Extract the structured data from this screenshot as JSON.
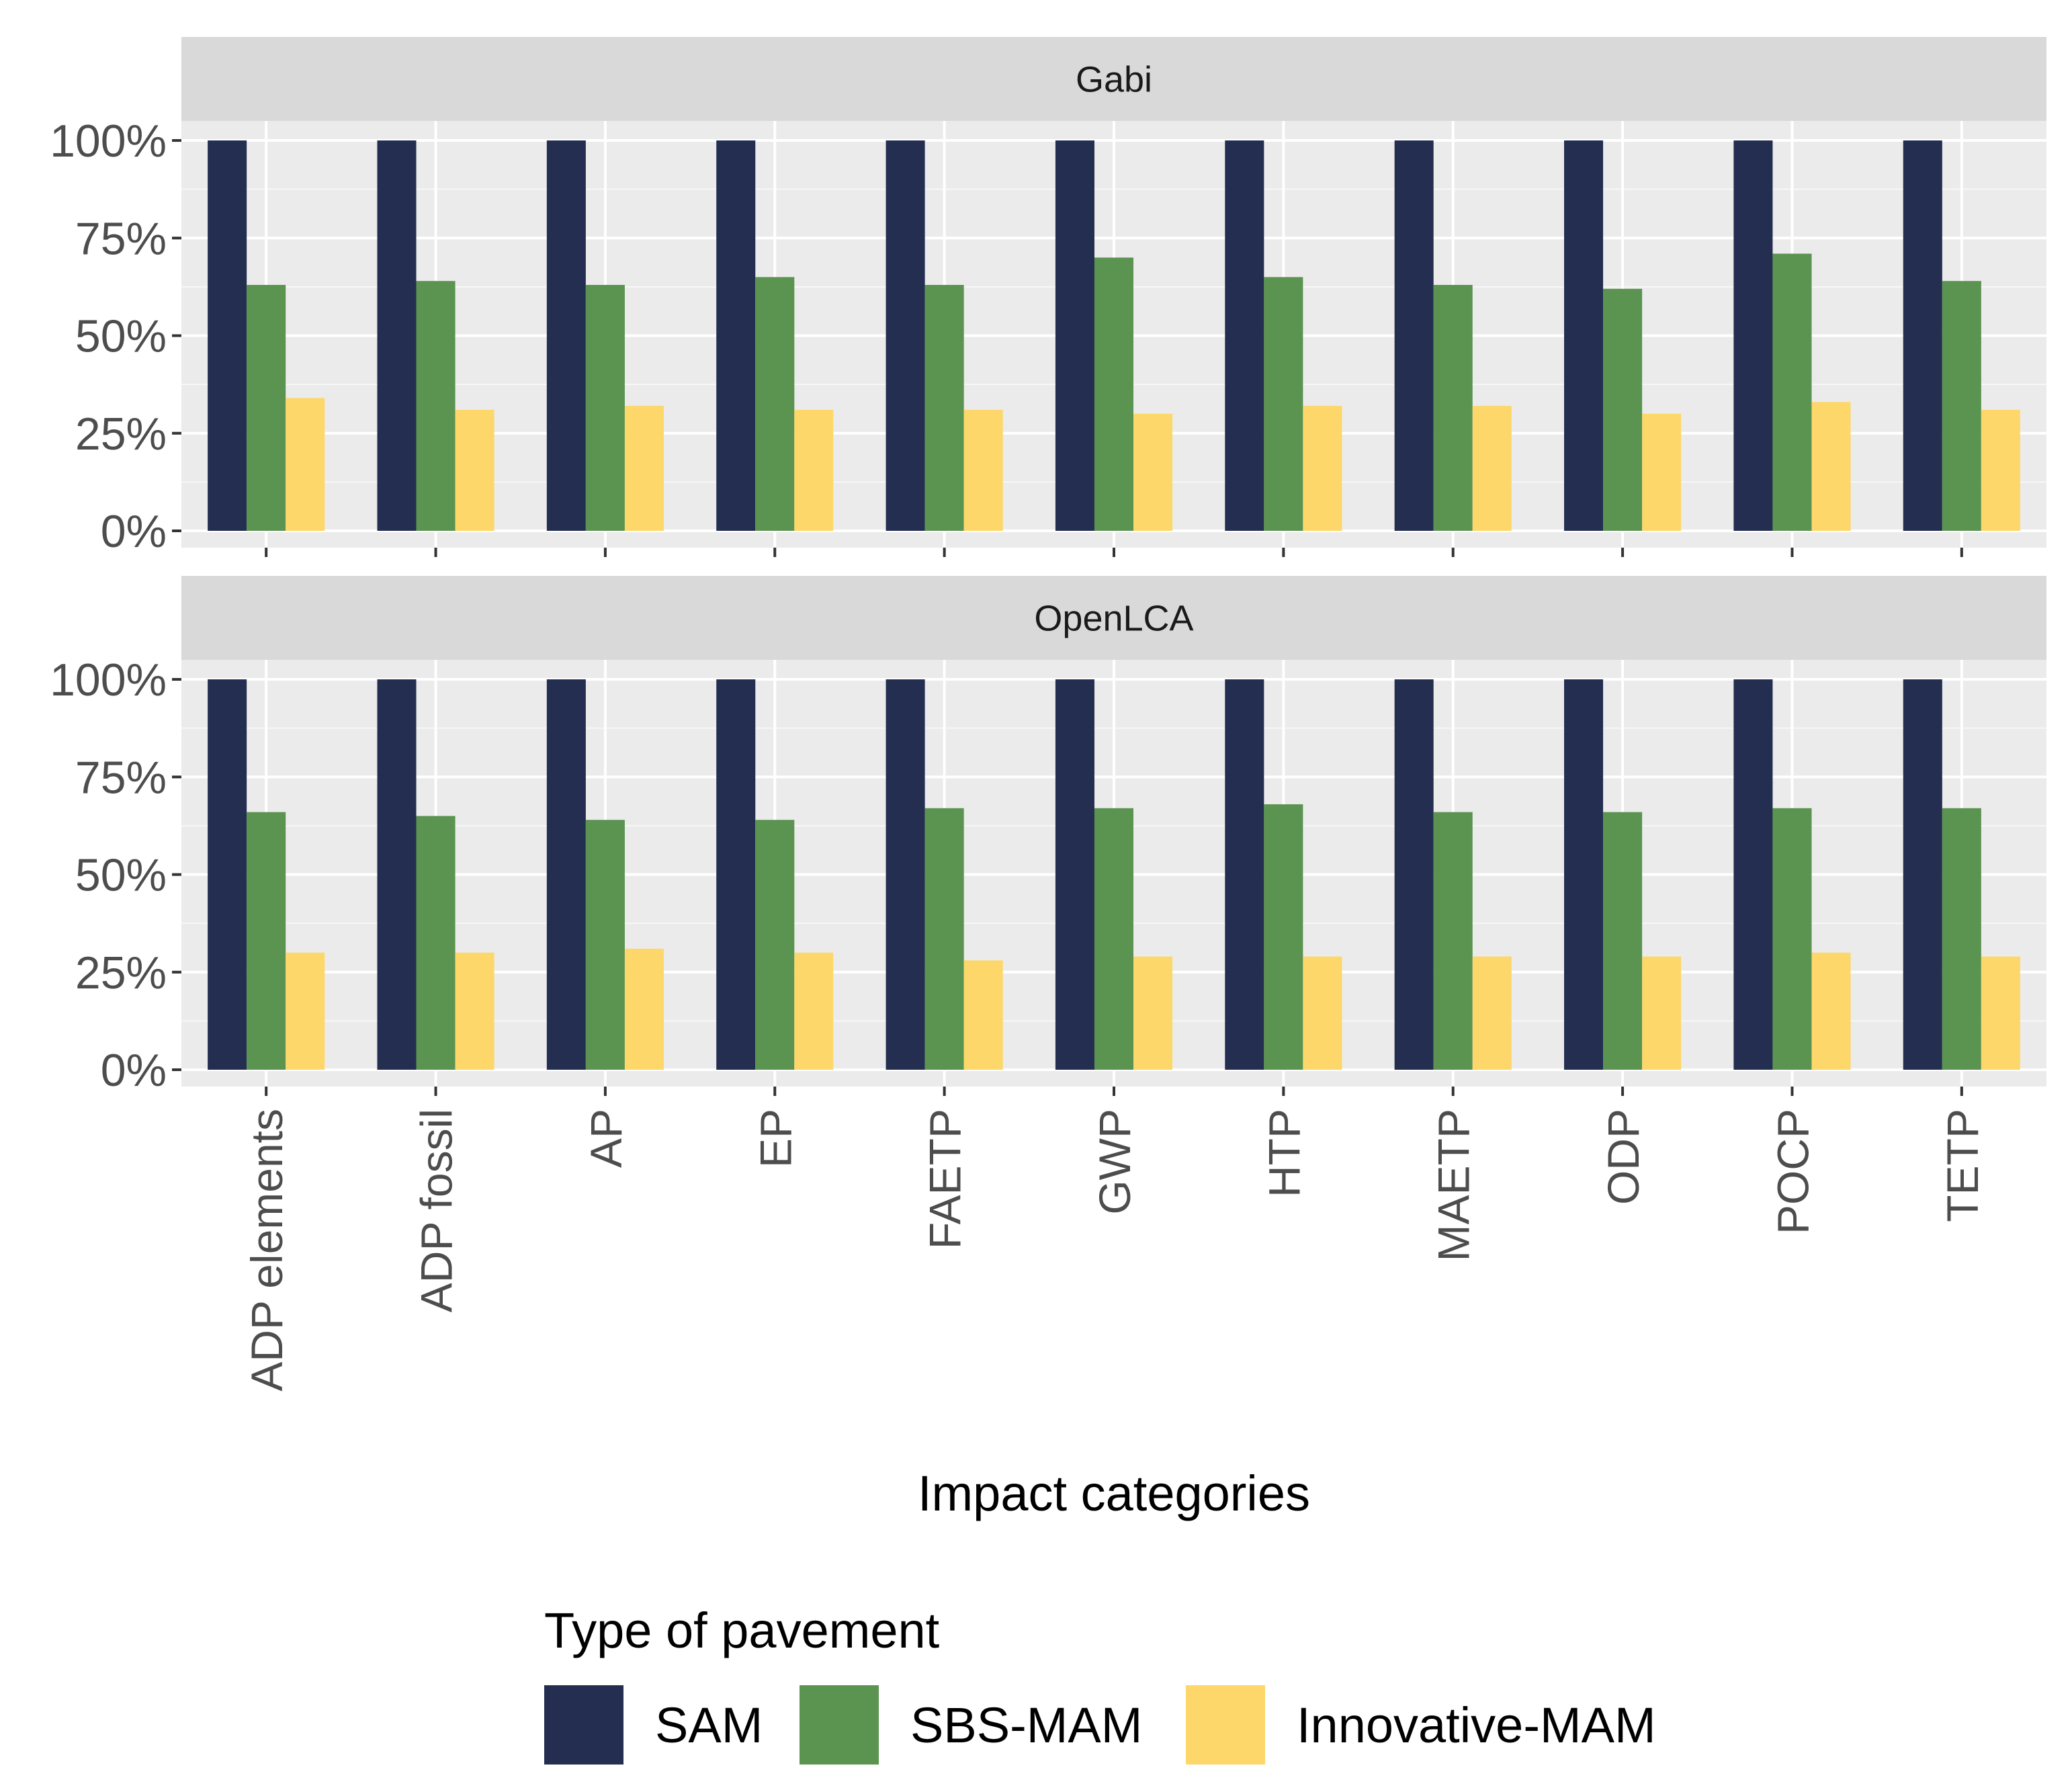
{
  "chart_data": {
    "type": "bar",
    "facets": [
      "Gabi",
      "OpenLCA"
    ],
    "categories": [
      "ADP elements",
      "ADP fossil",
      "AP",
      "EP",
      "FAETP",
      "GWP",
      "HTP",
      "MAETP",
      "ODP",
      "POCP",
      "TETP"
    ],
    "series": [
      {
        "name": "SAM",
        "color": "#232e50",
        "values": {
          "Gabi": [
            100,
            100,
            100,
            100,
            100,
            100,
            100,
            100,
            100,
            100,
            100
          ],
          "OpenLCA": [
            100,
            100,
            100,
            100,
            100,
            100,
            100,
            100,
            100,
            100,
            100
          ]
        }
      },
      {
        "name": "SBS-MAM",
        "color": "#5b9350",
        "values": {
          "Gabi": [
            63,
            64,
            63,
            65,
            63,
            70,
            65,
            63,
            62,
            71,
            64
          ],
          "OpenLCA": [
            66,
            65,
            64,
            64,
            67,
            67,
            68,
            66,
            66,
            67,
            67
          ]
        }
      },
      {
        "name": "Innovative-MAM",
        "color": "#fdd76a",
        "values": {
          "Gabi": [
            34,
            31,
            32,
            31,
            31,
            30,
            32,
            32,
            30,
            33,
            31
          ],
          "OpenLCA": [
            30,
            30,
            31,
            30,
            28,
            29,
            29,
            29,
            29,
            30,
            29
          ]
        }
      }
    ],
    "y_ticks": [
      "0%",
      "25%",
      "50%",
      "75%",
      "100%"
    ],
    "ylim": [
      0,
      105
    ],
    "xlabel": "Impact categories",
    "ylabel": "",
    "legend_title": "Type of pavement",
    "legend_position": "bottom",
    "grid": true
  }
}
